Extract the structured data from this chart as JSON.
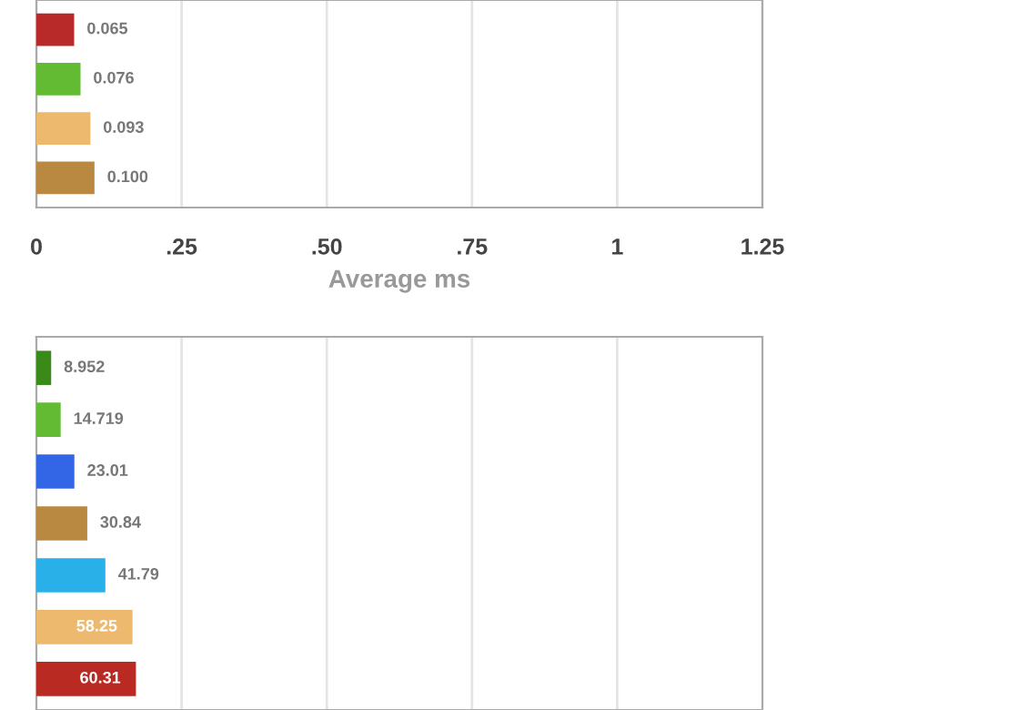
{
  "chart_data": [
    {
      "type": "bar",
      "orientation": "horizontal",
      "categories": [
        null,
        null,
        null,
        null
      ],
      "values": [
        0.065,
        0.076,
        0.093,
        0.1
      ],
      "value_labels": [
        "0.065",
        "0.076",
        "0.093",
        "0.100"
      ],
      "colors": [
        "#b8292a",
        "#63bb33",
        "#edb96e",
        "#b98941"
      ],
      "xlim": [
        0,
        1.25
      ],
      "xticks": [
        0,
        {
          "value": 0.25,
          "label": ".25"
        },
        {
          "value": 0.5,
          "label": ".50"
        },
        {
          "value": 0.75,
          "label": ".75"
        },
        1,
        1.25
      ],
      "xlabel": "Average ms",
      "grid": "x",
      "legend": false
    },
    {
      "type": "bar",
      "orientation": "horizontal",
      "categories": [
        null,
        null,
        null,
        null,
        null,
        null,
        null
      ],
      "values": [
        8.952,
        14.719,
        23.01,
        30.84,
        41.79,
        58.25,
        60.31
      ],
      "value_labels": [
        "8.952",
        "14.719",
        "23.01",
        "30.84",
        "41.79",
        "58.25",
        "60.31"
      ],
      "colors": [
        "#3a8a1a",
        "#63bb33",
        "#3366e6",
        "#b98941",
        "#2ab0e8",
        "#edb96e",
        "#b82a22"
      ],
      "xlim": [
        0,
        440
      ],
      "xticks": [
        {
          "value": 88,
          "label": null
        },
        {
          "value": 176,
          "label": null
        },
        {
          "value": 264,
          "label": null
        },
        {
          "value": 352,
          "label": null
        }
      ],
      "grid": "x",
      "legend": false
    }
  ]
}
